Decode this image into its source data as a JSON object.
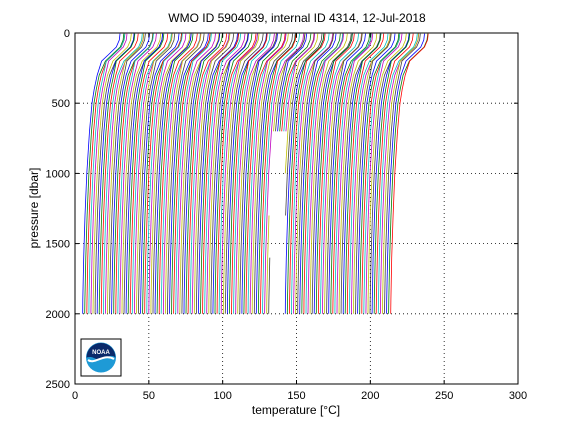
{
  "chart_data": {
    "type": "line",
    "title": "WMO ID 5904039, internal ID 4314, 12-Jul-2018",
    "xlabel": "temperature [°C]",
    "ylabel": "pressure [dbar]",
    "xlim": [
      0,
      300
    ],
    "ylim": [
      0,
      2500
    ],
    "y_reversed": true,
    "grid": "dotted",
    "x_ticks": [
      "0",
      "50",
      "100",
      "150",
      "200",
      "250",
      "300"
    ],
    "y_ticks": [
      "0",
      "500",
      "1000",
      "1500",
      "2000",
      "2500"
    ],
    "series_description": "waterfall of ~150 profiles offset in temperature, colors cycling blue, green, red, cyan, magenta, yellow, black",
    "profile_count": 150,
    "offset_start": 3,
    "offset_step": 1.4,
    "profile_shape": {
      "pressure": [
        5,
        50,
        100,
        150,
        200,
        300,
        400,
        500,
        700,
        1000,
        1300,
        1600,
        1900,
        2000
      ],
      "temperature_rel": [
        27.5,
        27.0,
        25.0,
        20.0,
        15.0,
        12.0,
        10.0,
        8.5,
        6.8,
        5.0,
        3.8,
        2.9,
        2.3,
        2.2
      ]
    },
    "gap_x_range": [
      132,
      142
    ],
    "gap_pressure_range": [
      1000,
      2000
    ],
    "colors": [
      "#0000ff",
      "#008000",
      "#ff0000",
      "#00bfbf",
      "#bf00bf",
      "#bfbf00",
      "#404040"
    ]
  },
  "logo": {
    "text": "NOAA"
  }
}
